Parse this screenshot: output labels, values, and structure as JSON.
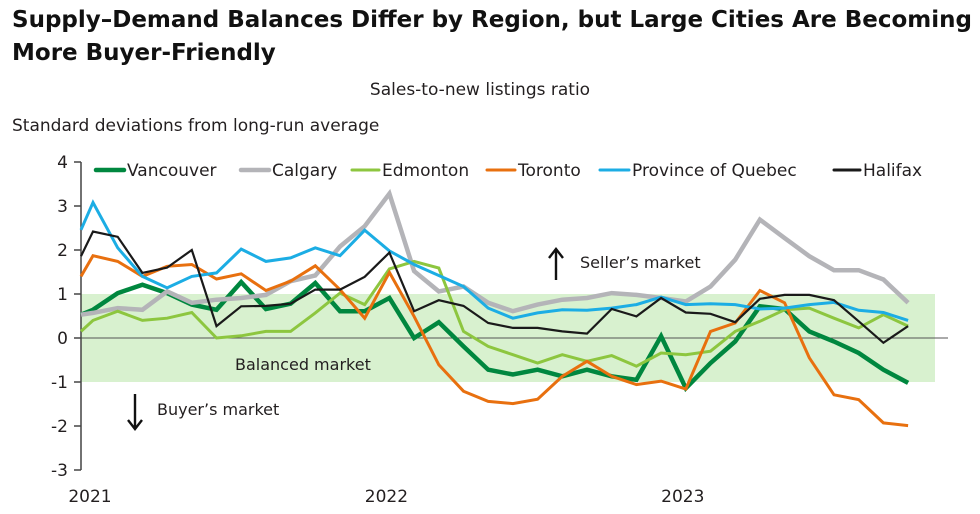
{
  "chart_data": {
    "type": "line",
    "title": "Supply–Demand Balances Differ by Region, but Large Cities Are Becoming More Buyer-Friendly",
    "subtitle": "Sales-to-new listings ratio",
    "ylabel": "Standard deviations from long-run average",
    "xlabel": "",
    "ylim": [
      -3,
      4
    ],
    "yticks": [
      "4",
      "3",
      "2",
      "1",
      "0",
      "-1",
      "-2",
      "-3"
    ],
    "xticks": [
      "2021",
      "2022",
      "2023"
    ],
    "grid": false,
    "legend": "top",
    "band": {
      "from": -1,
      "to": 1,
      "color": "#d8f1cf"
    },
    "annotations": {
      "seller": "Seller’s market",
      "balanced": "Balanced market",
      "buyer": "Buyer’s market"
    },
    "x": [
      "2020-12",
      "2021-01",
      "2021-02",
      "2021-03",
      "2021-04",
      "2021-05",
      "2021-06",
      "2021-07",
      "2021-08",
      "2021-09",
      "2021-10",
      "2021-11",
      "2021-12",
      "2022-01",
      "2022-02",
      "2022-03",
      "2022-04",
      "2022-05",
      "2022-06",
      "2022-07",
      "2022-08",
      "2022-09",
      "2022-10",
      "2022-11",
      "2022-12",
      "2023-01",
      "2023-02",
      "2023-03",
      "2023-04",
      "2023-05",
      "2023-06",
      "2023-07",
      "2023-08",
      "2023-09",
      "2023-10"
    ],
    "series": [
      {
        "name": "Vancouver",
        "color": "#00873f",
        "width": 4.5,
        "values": [
          0.53,
          0.64,
          1.02,
          1.21,
          1.02,
          0.76,
          0.64,
          1.27,
          0.66,
          0.78,
          1.25,
          0.61,
          0.61,
          0.91,
          0.0,
          0.36,
          -0.19,
          -0.72,
          -0.83,
          -0.72,
          -0.87,
          -0.72,
          -0.87,
          -0.95,
          0.04,
          -1.14,
          -0.57,
          -0.08,
          0.72,
          0.66,
          0.15,
          -0.08,
          -0.34,
          -0.72,
          -1.02
        ]
      },
      {
        "name": "Calgary",
        "color": "#b4b4b8",
        "width": 4.5,
        "values": [
          0.53,
          0.57,
          0.68,
          0.64,
          1.06,
          0.8,
          0.87,
          0.91,
          0.98,
          1.29,
          1.42,
          2.08,
          2.54,
          3.28,
          1.52,
          1.06,
          1.17,
          0.8,
          0.61,
          0.76,
          0.87,
          0.91,
          1.02,
          0.98,
          0.91,
          0.83,
          1.17,
          1.78,
          2.69,
          2.27,
          1.86,
          1.54,
          1.54,
          1.33,
          0.8
        ]
      },
      {
        "name": "Edmonton",
        "color": "#8dc63f",
        "width": 3,
        "values": [
          0.15,
          0.4,
          0.61,
          0.4,
          0.45,
          0.58,
          0.0,
          0.05,
          0.15,
          0.15,
          0.57,
          1.02,
          0.76,
          1.57,
          1.74,
          1.59,
          0.15,
          -0.19,
          -0.38,
          -0.57,
          -0.38,
          -0.53,
          -0.4,
          -0.64,
          -0.34,
          -0.38,
          -0.3,
          0.15,
          0.38,
          0.64,
          0.68,
          0.45,
          0.23,
          0.53,
          0.27
        ]
      },
      {
        "name": "Toronto",
        "color": "#e8700f",
        "width": 3,
        "values": [
          1.4,
          1.87,
          1.74,
          1.4,
          1.63,
          1.67,
          1.34,
          1.46,
          1.08,
          1.29,
          1.64,
          1.1,
          0.45,
          1.49,
          0.49,
          -0.61,
          -1.21,
          -1.44,
          -1.49,
          -1.39,
          -0.87,
          -0.53,
          -0.87,
          -1.06,
          -0.98,
          -1.16,
          0.15,
          0.34,
          1.08,
          0.8,
          -0.45,
          -1.29,
          -1.4,
          -1.93,
          -1.99
        ]
      },
      {
        "name": "Province of Quebec",
        "color": "#1cade4",
        "width": 3,
        "values": [
          2.46,
          3.08,
          2.05,
          1.4,
          1.14,
          1.4,
          1.48,
          2.02,
          1.74,
          1.82,
          2.05,
          1.87,
          2.45,
          1.98,
          1.67,
          1.42,
          1.17,
          0.68,
          0.45,
          0.57,
          0.64,
          0.63,
          0.68,
          0.76,
          0.93,
          0.76,
          0.78,
          0.76,
          0.66,
          0.68,
          0.76,
          0.81,
          0.63,
          0.58,
          0.4
        ]
      },
      {
        "name": "Halifax",
        "color": "#1a1a1a",
        "width": 2.2,
        "values": [
          1.86,
          2.42,
          2.3,
          1.48,
          1.6,
          2.0,
          0.27,
          0.72,
          0.73,
          0.78,
          1.1,
          1.1,
          1.39,
          1.94,
          0.61,
          0.86,
          0.73,
          0.34,
          0.23,
          0.23,
          0.15,
          0.1,
          0.66,
          0.49,
          0.91,
          0.58,
          0.55,
          0.36,
          0.89,
          0.98,
          0.98,
          0.86,
          0.38,
          -0.11,
          0.27
        ]
      }
    ]
  }
}
